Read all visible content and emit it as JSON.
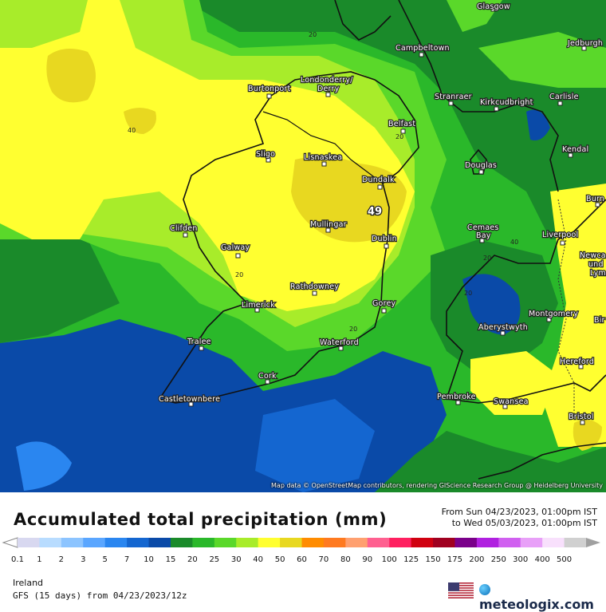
{
  "map": {
    "cities": [
      {
        "name": "Glasgow"
      },
      {
        "name": "Jedburgh"
      },
      {
        "name": "Campbeltown"
      },
      {
        "name": "Londonderry/"
      },
      {
        "name": "Derry"
      },
      {
        "name": "Burtonport"
      },
      {
        "name": "Stranraer"
      },
      {
        "name": "Kirkcudbright"
      },
      {
        "name": "Carlisle"
      },
      {
        "name": "Belfast"
      },
      {
        "name": "Kendal"
      },
      {
        "name": "Sligo"
      },
      {
        "name": "Lisnaskea"
      },
      {
        "name": "Douglas"
      },
      {
        "name": "Dundalk"
      },
      {
        "name": "Burn"
      },
      {
        "name": "Clifden"
      },
      {
        "name": "Mullingar"
      },
      {
        "name": "Cemaes"
      },
      {
        "name": "Bay"
      },
      {
        "name": "Liverpool"
      },
      {
        "name": "Galway"
      },
      {
        "name": "Dublin"
      },
      {
        "name": "Newca"
      },
      {
        "name": "und"
      },
      {
        "name": "Lym"
      },
      {
        "name": "Rathdowney"
      },
      {
        "name": "Limerick"
      },
      {
        "name": "Gorey"
      },
      {
        "name": "Montgomery"
      },
      {
        "name": "Bir"
      },
      {
        "name": "Aberystwyth"
      },
      {
        "name": "Tralee"
      },
      {
        "name": "Waterford"
      },
      {
        "name": "Hereford"
      },
      {
        "name": "Cork"
      },
      {
        "name": "Pembroke"
      },
      {
        "name": "Swansea"
      },
      {
        "name": "Castletownbere"
      },
      {
        "name": "Bristol"
      }
    ],
    "contour_labels": [
      "20",
      "40",
      "20",
      "20",
      "40",
      "20",
      "20",
      "20"
    ],
    "max_marker": "49",
    "attribution": "Map data © OpenStreetMap contributors, rendering GIScience Research Group @ Heidelberg University"
  },
  "footer": {
    "title": "Accumulated total precipitation (mm)",
    "period_from": "From Sun 04/23/2023, 01:00pm IST",
    "period_to": "to Wed 05/03/2023, 01:00pm IST",
    "region": "Ireland",
    "model": "GFS (15 days) from 04/23/2023/12z",
    "brand": "meteologix.com"
  },
  "legend": {
    "labels": [
      "0.1",
      "1",
      "2",
      "3",
      "5",
      "7",
      "10",
      "15",
      "20",
      "25",
      "30",
      "40",
      "50",
      "60",
      "70",
      "80",
      "90",
      "100",
      "125",
      "150",
      "175",
      "200",
      "250",
      "300",
      "400",
      "500"
    ],
    "colors": [
      "#d8d8f0",
      "#b8dcff",
      "#8cc4ff",
      "#5aa6ff",
      "#2a86f0",
      "#1466d0",
      "#0a4aa8",
      "#1a8a2a",
      "#2ab82a",
      "#5ad82a",
      "#a8ec2a",
      "#ffff30",
      "#e8d820",
      "#ff8c00",
      "#ff7a20",
      "#ffa070",
      "#ff6090",
      "#ff2060",
      "#d00010",
      "#a00020",
      "#7a008a",
      "#b020e0",
      "#d060f0",
      "#e8a0f8",
      "#f8e0fc",
      "#d0d0d0"
    ]
  }
}
